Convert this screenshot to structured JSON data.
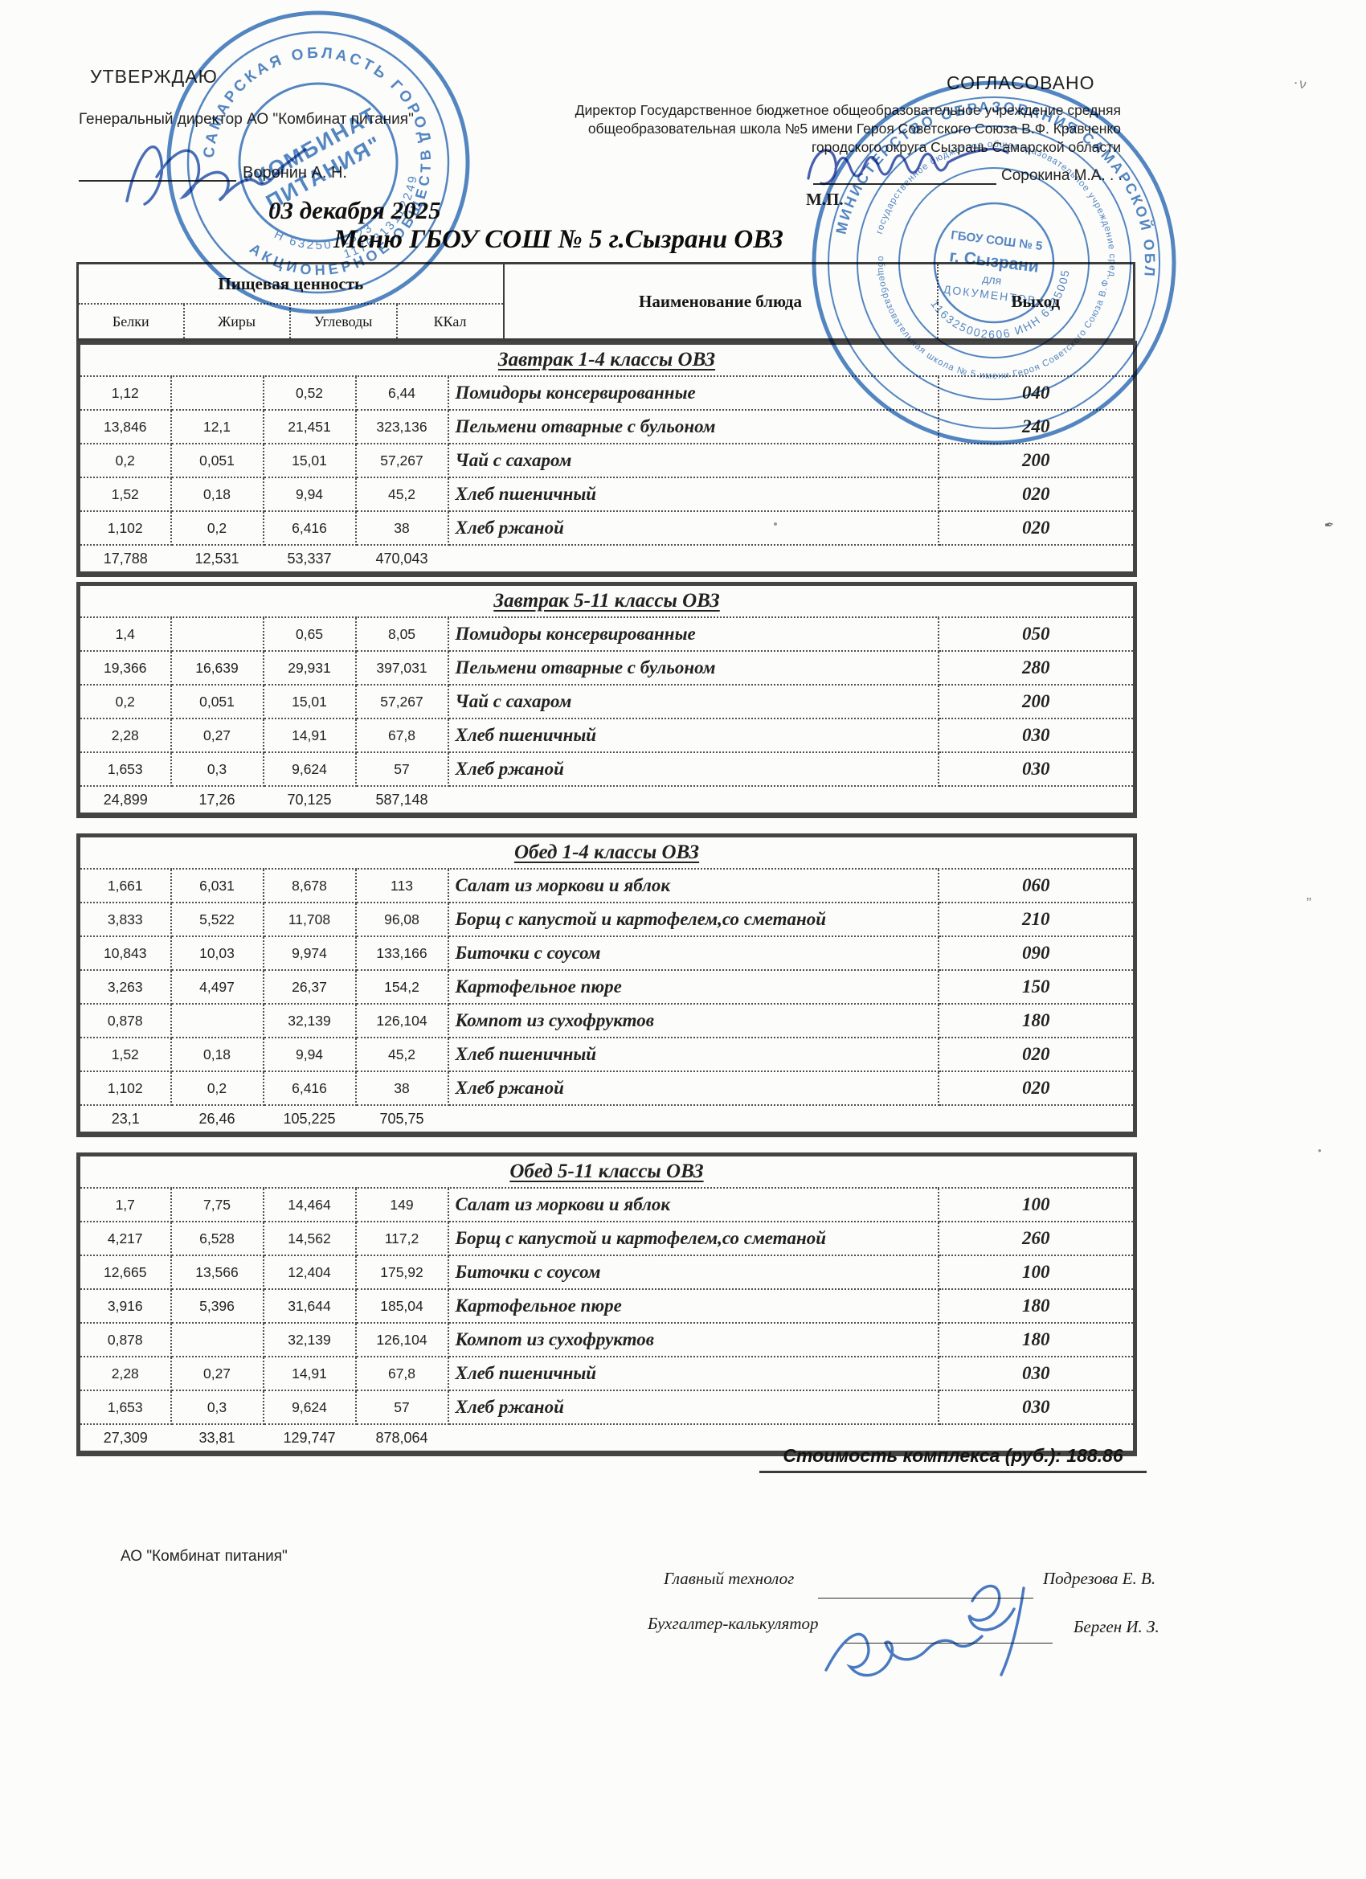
{
  "approval": {
    "left": {
      "title": "УТВЕРЖДАЮ",
      "subtitle": "Генеральный директор АО \"Комбинат питания\"",
      "signer": "Воронин А. Н.",
      "date": "03 декабря 2025"
    },
    "right": {
      "title": "СОГЛАСОВАНО",
      "line1": "Директор Государственное бюджетное общеобразовательное учреждение средняя",
      "line2": "общеобразовательная школа №5 имени Героя Советского Союза В.Ф. Кравченко",
      "line3": "городского округа Сызрань Самарской области",
      "signer": "Сорокина М.А. . .",
      "seal_mark": "М.П."
    }
  },
  "title": "Меню ГБОУ СОШ № 5 г.Сызрани ОВЗ",
  "table_header": {
    "nutrition_group": "Пищевая ценность",
    "columns": [
      "Белки",
      "Жиры",
      "Углеводы",
      "ККал"
    ],
    "dish": "Наименование блюда",
    "output": "Выход"
  },
  "sections": [
    {
      "title": "Завтрак 1-4 классы ОВЗ",
      "rows": [
        {
          "values": [
            "1,12",
            "",
            "0,52",
            "6,44"
          ],
          "dish": "Помидоры консервированные",
          "out": "040"
        },
        {
          "values": [
            "13,846",
            "12,1",
            "21,451",
            "323,136"
          ],
          "dish": "Пельмени отварные с бульоном",
          "out": "240"
        },
        {
          "values": [
            "0,2",
            "0,051",
            "15,01",
            "57,267"
          ],
          "dish": "Чай с сахаром",
          "out": "200"
        },
        {
          "values": [
            "1,52",
            "0,18",
            "9,94",
            "45,2"
          ],
          "dish": "Хлеб пшеничный",
          "out": "020"
        },
        {
          "values": [
            "1,102",
            "0,2",
            "6,416",
            "38"
          ],
          "dish": "Хлеб ржаной",
          "out": "020"
        }
      ],
      "totals": [
        "17,788",
        "12,531",
        "53,337",
        "470,043"
      ]
    },
    {
      "title": "Завтрак 5-11 классы ОВЗ",
      "rows": [
        {
          "values": [
            "1,4",
            "",
            "0,65",
            "8,05"
          ],
          "dish": "Помидоры консервированные",
          "out": "050"
        },
        {
          "values": [
            "19,366",
            "16,639",
            "29,931",
            "397,031"
          ],
          "dish": "Пельмени отварные с бульоном",
          "out": "280"
        },
        {
          "values": [
            "0,2",
            "0,051",
            "15,01",
            "57,267"
          ],
          "dish": "Чай с сахаром",
          "out": "200"
        },
        {
          "values": [
            "2,28",
            "0,27",
            "14,91",
            "67,8"
          ],
          "dish": "Хлеб пшеничный",
          "out": "030"
        },
        {
          "values": [
            "1,653",
            "0,3",
            "9,624",
            "57"
          ],
          "dish": "Хлеб ржаной",
          "out": "030"
        }
      ],
      "totals": [
        "24,899",
        "17,26",
        "70,125",
        "587,148"
      ]
    },
    {
      "title": "Обед 1-4 классы ОВЗ",
      "rows": [
        {
          "values": [
            "1,661",
            "6,031",
            "8,678",
            "113"
          ],
          "dish": "Салат из моркови и яблок",
          "out": "060"
        },
        {
          "values": [
            "3,833",
            "5,522",
            "11,708",
            "96,08"
          ],
          "dish": "Борщ с капустой и картофелем,со сметаной",
          "out": "210"
        },
        {
          "values": [
            "10,843",
            "10,03",
            "9,974",
            "133,166"
          ],
          "dish": "Биточки с соусом",
          "out": "090"
        },
        {
          "values": [
            "3,263",
            "4,497",
            "26,37",
            "154,2"
          ],
          "dish": "Картофельное пюре",
          "out": "150"
        },
        {
          "values": [
            "0,878",
            "",
            "32,139",
            "126,104"
          ],
          "dish": "Компот из сухофруктов",
          "out": "180"
        },
        {
          "values": [
            "1,52",
            "0,18",
            "9,94",
            "45,2"
          ],
          "dish": "Хлеб пшеничный",
          "out": "020"
        },
        {
          "values": [
            "1,102",
            "0,2",
            "6,416",
            "38"
          ],
          "dish": "Хлеб ржаной",
          "out": "020"
        }
      ],
      "totals": [
        "23,1",
        "26,46",
        "105,225",
        "705,75"
      ]
    },
    {
      "title": "Обед 5-11 классы ОВЗ",
      "rows": [
        {
          "values": [
            "1,7",
            "7,75",
            "14,464",
            "149"
          ],
          "dish": "Салат из моркови и яблок",
          "out": "100"
        },
        {
          "values": [
            "4,217",
            "6,528",
            "14,562",
            "117,2"
          ],
          "dish": "Борщ с капустой и картофелем,со сметаной",
          "out": "260"
        },
        {
          "values": [
            "12,665",
            "13,566",
            "12,404",
            "175,92"
          ],
          "dish": "Биточки с соусом",
          "out": "100"
        },
        {
          "values": [
            "3,916",
            "5,396",
            "31,644",
            "185,04"
          ],
          "dish": "Картофельное пюре",
          "out": "180"
        },
        {
          "values": [
            "0,878",
            "",
            "32,139",
            "126,104"
          ],
          "dish": "Компот из сухофруктов",
          "out": "180"
        },
        {
          "values": [
            "2,28",
            "0,27",
            "14,91",
            "67,8"
          ],
          "dish": "Хлеб пшеничный",
          "out": "030"
        },
        {
          "values": [
            "1,653",
            "0,3",
            "9,624",
            "57"
          ],
          "dish": "Хлеб ржаной",
          "out": "030"
        }
      ],
      "totals": [
        "27,309",
        "33,81",
        "129,747",
        "878,064"
      ]
    }
  ],
  "footer": {
    "cost_label": "Стоимость комплекса (руб.): 188.86",
    "org": "АО \"Комбинат питания\"",
    "technologist_label": "Главный технолог",
    "technologist_name": "Подрезова Е. В.",
    "accountant_label": "Бухгалтер-калькулятор",
    "accountant_name": "Берген И. З."
  },
  "stamps": {
    "ink_color": "#2e6db8",
    "left": {
      "ring_top": "САМАРСКАЯ ОБЛАСТЬ ГОРОД СЫЗРАНЬ",
      "ring_bottom": "АКЦИОНЕРНОЕ ОБЩЕСТВО",
      "center_line1": "\"КОМБИНАТ",
      "center_line2": "ПИТАНИЯ\"",
      "number_small": "Н 6325071823",
      "number_big": "1176313112249"
    },
    "right": {
      "ring_outer": "МИНИСТЕРСТВО ОБРАЗОВАНИЯ САМАРСКОЙ ОБЛАСТИ",
      "ring_mid_1": "государственное бюджетное общеобразовательное учреждение средняя",
      "ring_mid_2": "общеобразовательная школа № 5 имени Героя Советского Союза В.Ф. Кравченко",
      "ring_numbers": "116325002606 ИНН 6325005316",
      "center_1": "ГБОУ СОШ № 5",
      "center_2": "г. Сызрани",
      "center_3": "для",
      "center_4": "ДОКУМЕНТОВ"
    }
  }
}
